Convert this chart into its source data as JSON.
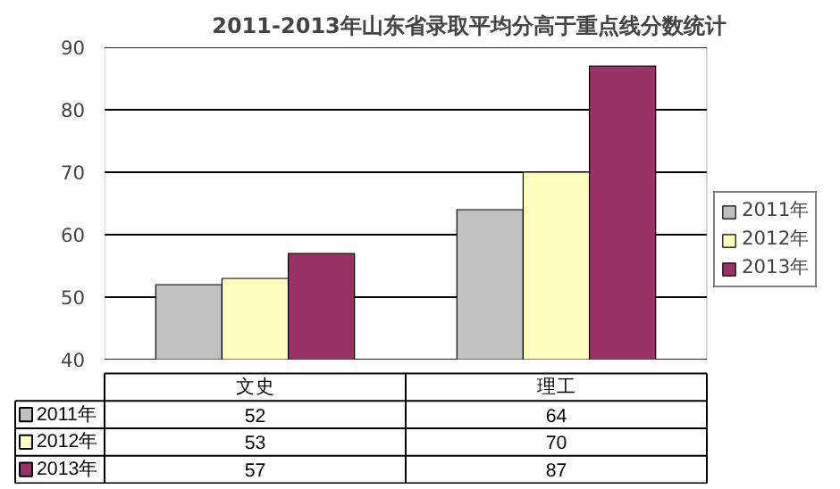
{
  "chart_data": {
    "type": "bar",
    "title": "2011-2013年山东省录取平均分高于重点线分数统计",
    "categories": [
      "文史",
      "理工"
    ],
    "series": [
      {
        "name": "2011年",
        "color": "#c0c0c0",
        "values": [
          52,
          64
        ]
      },
      {
        "name": "2012年",
        "color": "#ffffc0",
        "values": [
          53,
          70
        ]
      },
      {
        "name": "2013年",
        "color": "#993366",
        "values": [
          57,
          87
        ]
      }
    ],
    "ylim": [
      40,
      90
    ],
    "yticks": [
      40,
      50,
      60,
      70,
      80,
      90
    ],
    "grid": "y",
    "legend": "right",
    "data_labels": true
  }
}
